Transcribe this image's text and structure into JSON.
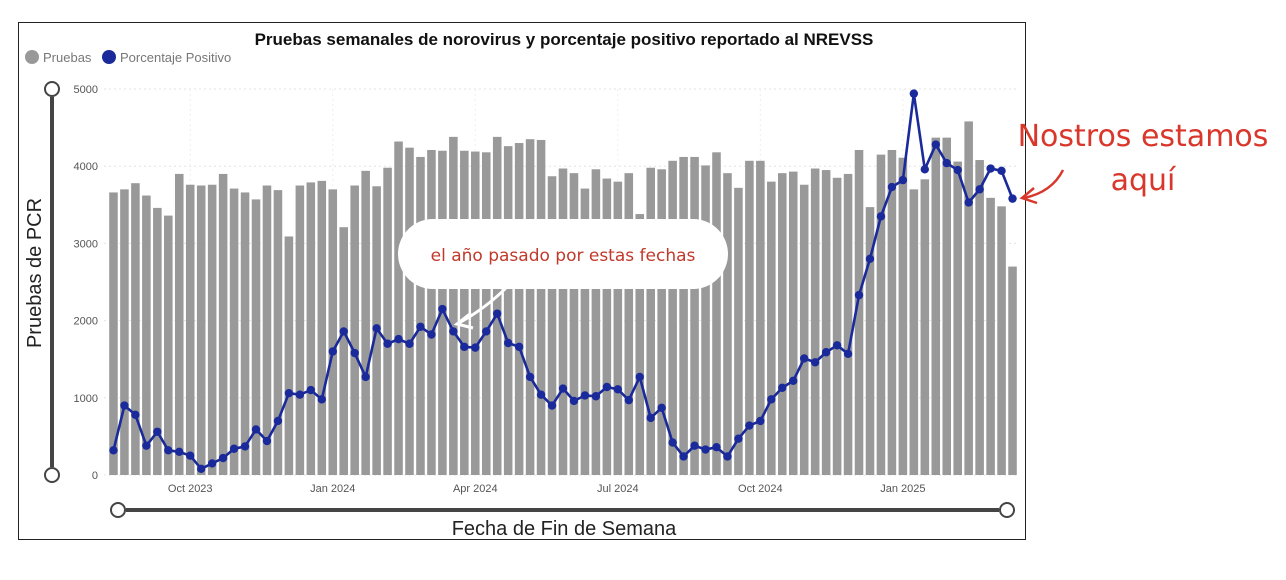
{
  "chart_data": {
    "type": "bar",
    "title": "Pruebas semanales de norovirus y porcentaje positivo reportado al NREVSS",
    "xlabel": "Fecha de Fin de Semana",
    "ylabel": "Pruebas de PCR",
    "ylim": [
      0,
      5000
    ],
    "yticks": [
      "0",
      "1000",
      "2000",
      "3000",
      "4000",
      "5000"
    ],
    "xticks": [
      "Oct 2023",
      "Jan 2024",
      "Apr 2024",
      "Jul 2024",
      "Oct 2024",
      "Jan 2025"
    ],
    "legend": {
      "position": "top-left",
      "entries": [
        {
          "name": "Pruebas",
          "color": "#999999"
        },
        {
          "name": "Porcentaje Positivo",
          "color": "#1a2a9a"
        }
      ]
    },
    "grid": true,
    "series": [
      {
        "name": "Pruebas",
        "type": "bar",
        "color": "#999999",
        "values": [
          3660,
          3700,
          3780,
          3620,
          3460,
          3360,
          3900,
          3760,
          3750,
          3760,
          3900,
          3710,
          3660,
          3570,
          3750,
          3690,
          3090,
          3750,
          3790,
          3810,
          3700,
          3210,
          3750,
          3940,
          3740,
          3980,
          4320,
          4240,
          4120,
          4210,
          4200,
          4380,
          4200,
          4190,
          4180,
          4380,
          4260,
          4300,
          4350,
          4340,
          3870,
          3970,
          3910,
          3710,
          3960,
          3840,
          3800,
          3910,
          3380,
          3980,
          3960,
          4070,
          4120,
          4120,
          4010,
          4180,
          3910,
          3720,
          4070,
          4070,
          3800,
          3910,
          3930,
          3760,
          3970,
          3950,
          3850,
          3900,
          4210,
          3470,
          4150,
          4210,
          4110,
          3700,
          3830,
          4370,
          4370,
          4060,
          4580,
          4080,
          3590,
          3480,
          2700
        ]
      },
      {
        "name": "Porcentaje Positivo",
        "type": "line",
        "color": "#1a2a9a",
        "values": [
          320,
          900,
          780,
          380,
          560,
          320,
          300,
          250,
          80,
          150,
          220,
          340,
          370,
          590,
          440,
          700,
          1060,
          1040,
          1100,
          980,
          1600,
          1860,
          1580,
          1270,
          1900,
          1700,
          1760,
          1700,
          1920,
          1820,
          2150,
          1860,
          1660,
          1650,
          1860,
          2090,
          1710,
          1660,
          1270,
          1040,
          900,
          1120,
          960,
          1030,
          1020,
          1140,
          1110,
          970,
          1270,
          740,
          870,
          420,
          240,
          380,
          330,
          360,
          240,
          470,
          640,
          700,
          980,
          1130,
          1220,
          1510,
          1460,
          1590,
          1680,
          1570,
          2330,
          2800,
          3350,
          3730,
          3820,
          4940,
          3960,
          4280,
          4040,
          3950,
          3530,
          3700,
          3970,
          3940,
          3580
        ]
      }
    ],
    "annotations": [
      {
        "text": "el año pasado por estas fechas"
      },
      {
        "text": "Nostros estamos aquí"
      }
    ]
  }
}
